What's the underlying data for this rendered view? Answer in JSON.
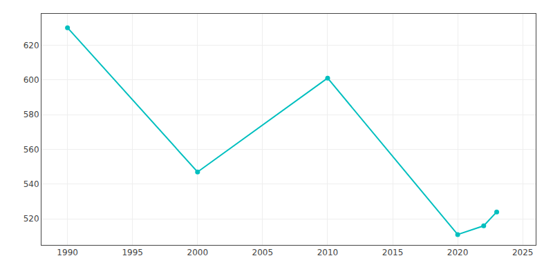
{
  "chart_data": {
    "type": "line",
    "x": [
      1990,
      2000,
      2010,
      2020,
      2022,
      2023
    ],
    "values": [
      630,
      547,
      601,
      511,
      516,
      524
    ],
    "color": "#00BFBF",
    "marker": "circle",
    "xlim": [
      1988,
      2026
    ],
    "ylim": [
      505,
      638
    ],
    "xticks": [
      1990,
      1995,
      2000,
      2005,
      2010,
      2015,
      2020,
      2025
    ],
    "yticks": [
      520,
      540,
      560,
      580,
      600,
      620
    ],
    "grid": true
  }
}
